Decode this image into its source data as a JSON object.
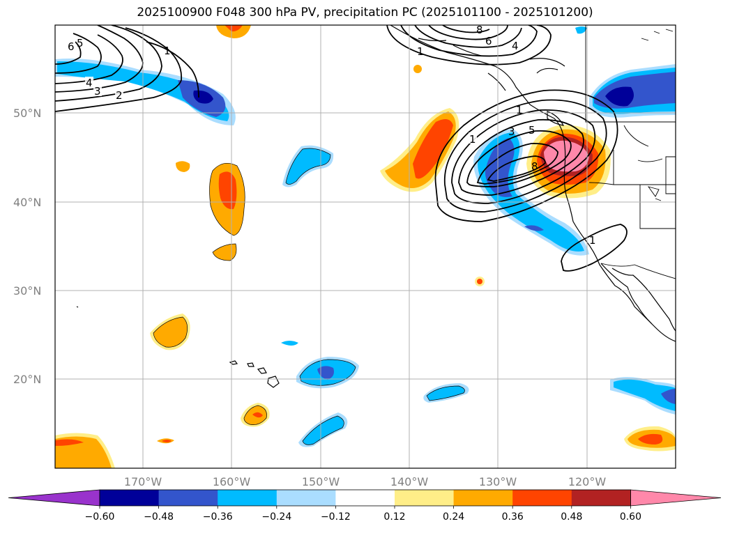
{
  "title": "2025100900 F048 300 hPa PV, precipitation PC (2025101100 - 2025101200)",
  "map": {
    "lat_labels": [
      "50°N",
      "40°N",
      "30°N",
      "20°N"
    ],
    "lon_labels": [
      "170°W",
      "160°W",
      "150°W",
      "140°W",
      "130°W",
      "120°W"
    ],
    "contour_labels": [
      "6",
      "5",
      "4",
      "3",
      "2",
      "1",
      "1",
      "8",
      "6",
      "4",
      "1",
      "1",
      "3",
      "5",
      "8",
      "1"
    ]
  },
  "colorbar": {
    "ticks": [
      "−0.60",
      "−0.48",
      "−0.36",
      "−0.24",
      "−0.12",
      "0.12",
      "0.24",
      "0.36",
      "0.48",
      "0.60"
    ],
    "colors": [
      "#9933cc",
      "#000099",
      "#3355cc",
      "#00bbff",
      "#aaddff",
      "#ffffff",
      "#ffee88",
      "#ffaa00",
      "#ff4400",
      "#b22222",
      "#ff88aa"
    ]
  },
  "colors": {
    "grid": "#b0b0b0",
    "coast": "#000000",
    "contour": "#000000"
  }
}
